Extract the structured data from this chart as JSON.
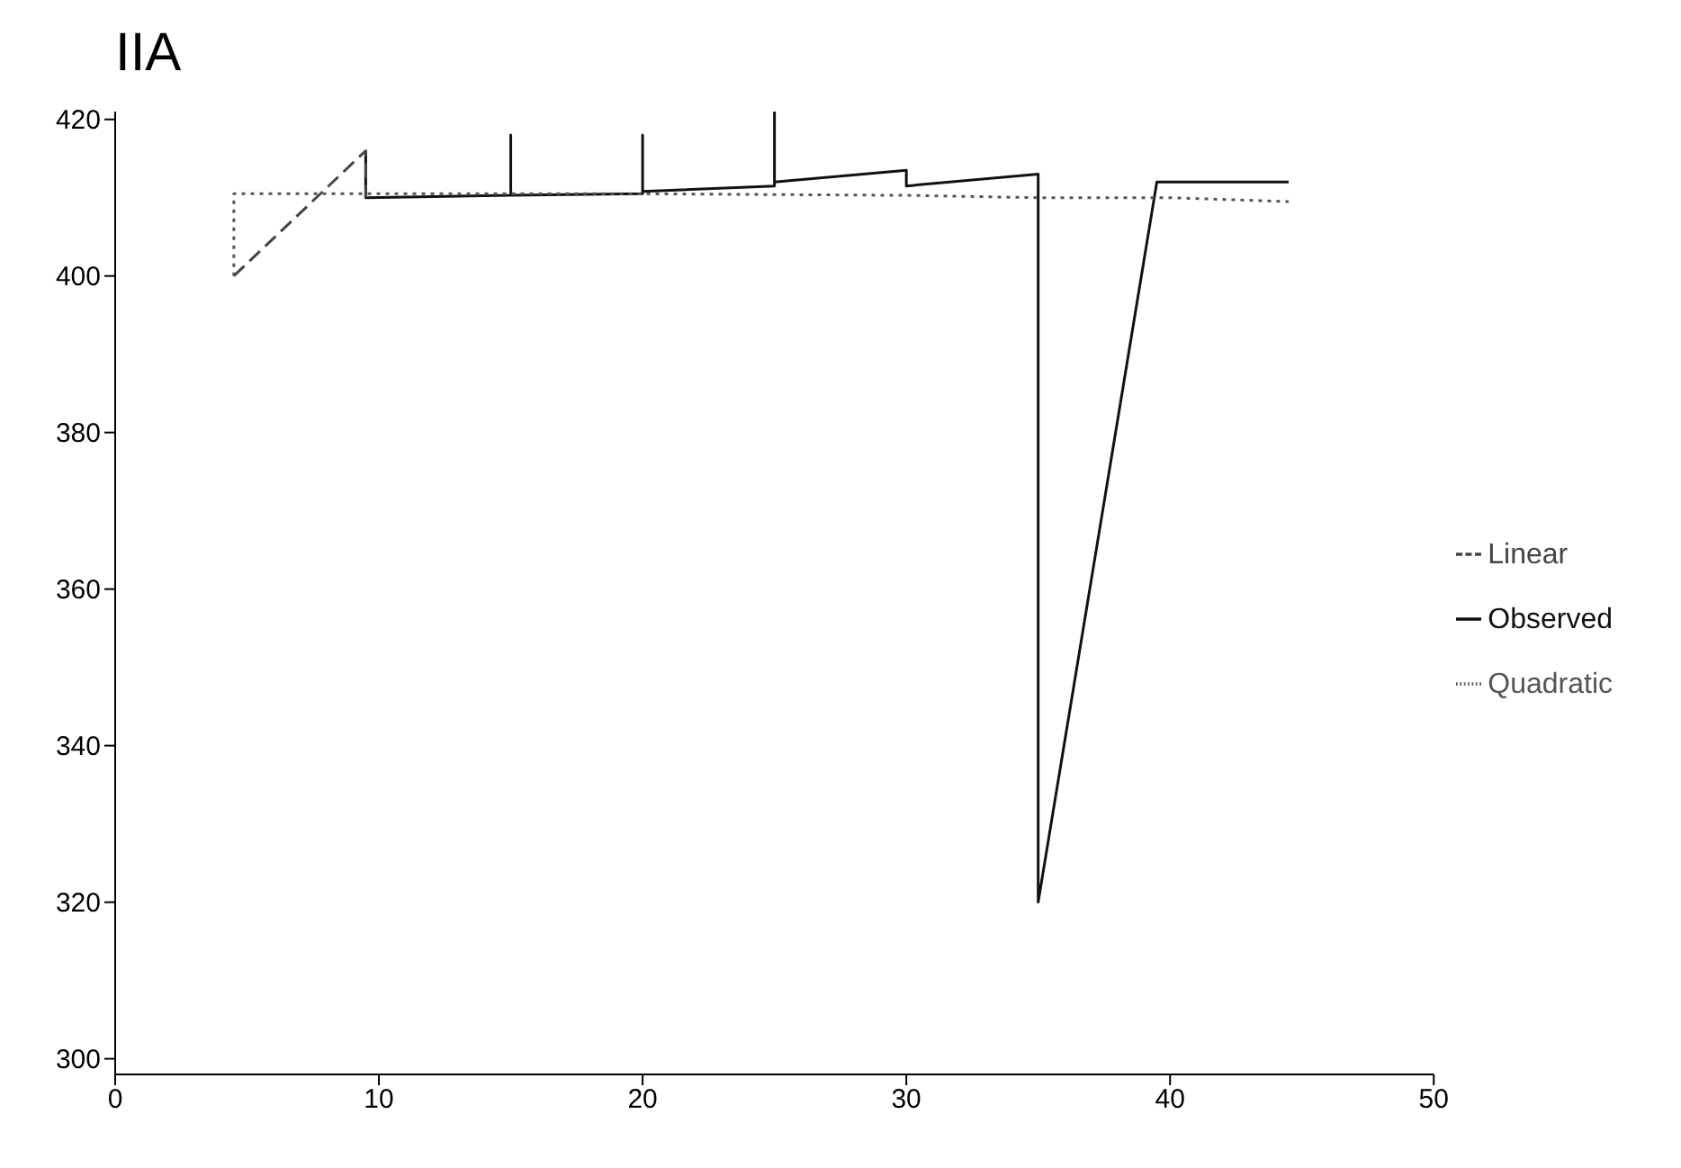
{
  "chart_data": {
    "type": "line",
    "title": "IIA",
    "xlim": [
      0,
      50
    ],
    "xticks": [
      0,
      10,
      20,
      30,
      40,
      50
    ],
    "ylim": [
      298,
      421
    ],
    "yticks": [
      300,
      320,
      340,
      360,
      380,
      400,
      420
    ],
    "grid": false,
    "legend": "right",
    "marker": "none",
    "series": [
      {
        "name": "Observed",
        "color": "#111111",
        "line_style": "solid",
        "x": [
          9.5,
          9.5,
          15,
          15,
          15,
          20,
          20,
          20,
          25,
          25,
          25,
          30,
          30,
          35,
          35,
          39.5,
          44.5
        ],
        "values": [
          416,
          410,
          410.3,
          418,
          410.3,
          410.5,
          418,
          410.8,
          411.5,
          421,
          412,
          413.5,
          411.5,
          413,
          320,
          412,
          412
        ]
      },
      {
        "name": "Linear",
        "color": "#444444",
        "line_style": "dashed",
        "x": [
          4.5,
          9.5,
          9.5
        ],
        "values": [
          400,
          416,
          410
        ]
      },
      {
        "name": "Quadratic",
        "color": "#555555",
        "line_style": "dotted",
        "x": [
          4.5,
          4.5,
          20,
          30,
          35,
          40,
          44.5
        ],
        "values": [
          400,
          410.5,
          410.5,
          410.3,
          410,
          410,
          409.5
        ]
      }
    ]
  }
}
